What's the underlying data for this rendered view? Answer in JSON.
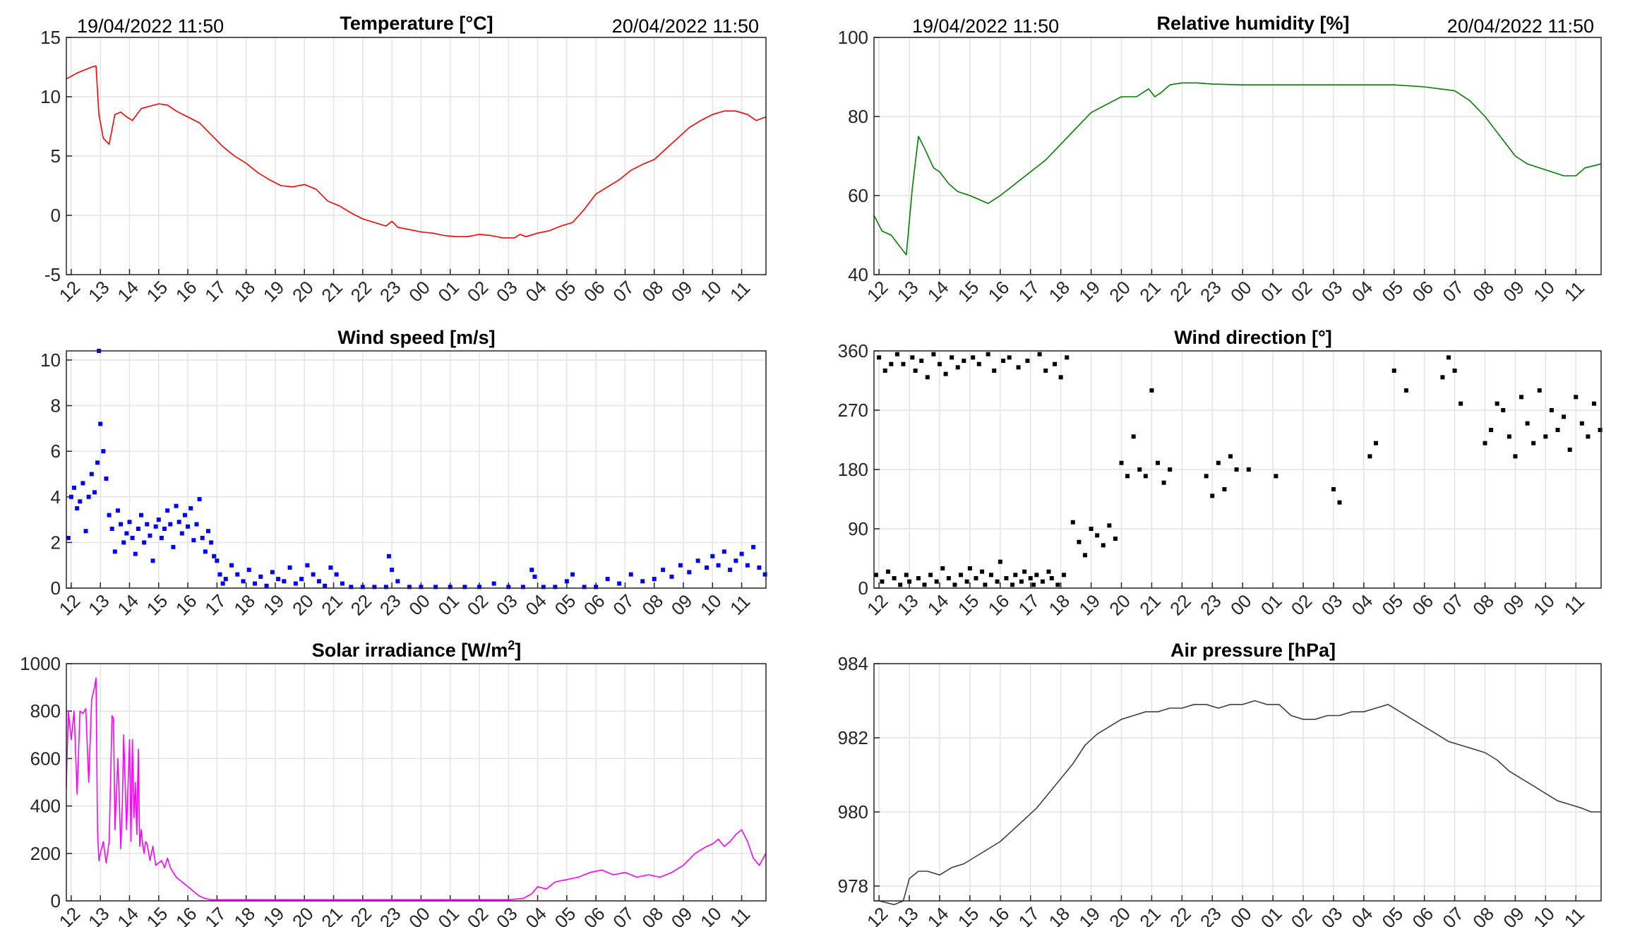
{
  "header": {
    "start_time": "19/04/2022 11:50",
    "end_time": "20/04/2022 11:50"
  },
  "x_ticks": [
    "12",
    "13",
    "14",
    "15",
    "16",
    "17",
    "18",
    "19",
    "20",
    "21",
    "22",
    "23",
    "00",
    "01",
    "02",
    "03",
    "04",
    "05",
    "06",
    "07",
    "08",
    "09",
    "10",
    "11"
  ],
  "chart_data": [
    {
      "id": "temperature",
      "type": "line",
      "title": "Temperature [°C]",
      "color": "#ff0000",
      "ylim": [
        -5,
        15
      ],
      "yticks": [
        -5,
        0,
        5,
        10,
        15
      ],
      "xlim": [
        11.833,
        35.833
      ],
      "grid": true,
      "x": [
        11.83,
        12.2,
        12.4,
        12.7,
        12.85,
        12.95,
        13.1,
        13.3,
        13.5,
        13.7,
        13.9,
        14.1,
        14.4,
        14.7,
        15.0,
        15.3,
        15.6,
        16.0,
        16.4,
        16.8,
        17.2,
        17.6,
        18.0,
        18.4,
        18.8,
        19.2,
        19.6,
        20.0,
        20.4,
        20.8,
        21.2,
        21.6,
        22.0,
        22.4,
        22.8,
        23.0,
        23.2,
        23.6,
        24.0,
        24.4,
        24.8,
        25.2,
        25.6,
        26.0,
        26.4,
        26.8,
        27.2,
        27.4,
        27.6,
        28.0,
        28.4,
        28.8,
        29.2,
        29.6,
        30.0,
        30.4,
        30.8,
        31.2,
        31.6,
        32.0,
        32.4,
        32.8,
        33.2,
        33.6,
        34.0,
        34.4,
        34.8,
        35.2,
        35.5,
        35.83
      ],
      "y": [
        11.5,
        12.0,
        12.2,
        12.5,
        12.6,
        8.5,
        6.5,
        6.0,
        8.5,
        8.7,
        8.3,
        8.0,
        9.0,
        9.2,
        9.4,
        9.3,
        8.8,
        8.3,
        7.8,
        6.8,
        5.8,
        5.0,
        4.4,
        3.6,
        3.0,
        2.5,
        2.4,
        2.6,
        2.2,
        1.2,
        0.8,
        0.2,
        -0.3,
        -0.6,
        -0.9,
        -0.5,
        -1.0,
        -1.2,
        -1.4,
        -1.5,
        -1.7,
        -1.8,
        -1.8,
        -1.6,
        -1.7,
        -1.9,
        -1.9,
        -1.6,
        -1.8,
        -1.5,
        -1.3,
        -0.9,
        -0.6,
        0.5,
        1.8,
        2.4,
        3.0,
        3.8,
        4.3,
        4.7,
        5.6,
        6.5,
        7.4,
        8.0,
        8.5,
        8.8,
        8.8,
        8.5,
        8.0,
        8.3
      ]
    },
    {
      "id": "humidity",
      "type": "line",
      "title": "Relative humidity [%]",
      "color": "#008000",
      "ylim": [
        40,
        100
      ],
      "yticks": [
        40,
        60,
        80,
        100
      ],
      "xlim": [
        11.833,
        35.833
      ],
      "grid": true,
      "x": [
        11.83,
        12.1,
        12.4,
        12.7,
        12.9,
        13.1,
        13.3,
        13.5,
        13.8,
        14.0,
        14.3,
        14.6,
        15.0,
        15.3,
        15.6,
        16.0,
        16.5,
        17.0,
        17.5,
        18.0,
        18.5,
        19.0,
        19.5,
        20.0,
        20.5,
        20.9,
        21.1,
        21.3,
        21.6,
        22.0,
        22.5,
        23.0,
        24.0,
        25.0,
        26.0,
        27.0,
        28.0,
        29.0,
        30.0,
        30.5,
        31.0,
        31.5,
        32.0,
        32.3,
        32.6,
        33.0,
        33.4,
        33.8,
        34.2,
        34.6,
        35.0,
        35.3,
        35.83
      ],
      "y": [
        55,
        51,
        50,
        47,
        45,
        62,
        75,
        72,
        67,
        66,
        63,
        61,
        60,
        59,
        58,
        60,
        63,
        66,
        69,
        73,
        77,
        81,
        83,
        85,
        85,
        87,
        85,
        86,
        88,
        88.5,
        88.5,
        88.2,
        88.0,
        88.0,
        88.0,
        88.0,
        88.0,
        88.0,
        87.5,
        87.0,
        86.5,
        84.0,
        80.0,
        77.0,
        74.0,
        70.0,
        68.0,
        67.0,
        66.0,
        65.0,
        65.0,
        67.0,
        68.0
      ]
    },
    {
      "id": "wind_speed",
      "type": "scatter",
      "title": "Wind speed [m/s]",
      "color": "#0000ff",
      "ylim": [
        0,
        10.4
      ],
      "yticks": [
        0,
        2,
        4,
        6,
        8,
        10
      ],
      "xlim": [
        11.833,
        35.833
      ],
      "grid": true,
      "x": [
        11.9,
        12.0,
        12.1,
        12.2,
        12.3,
        12.4,
        12.5,
        12.6,
        12.7,
        12.8,
        12.9,
        12.95,
        13.0,
        13.1,
        13.2,
        13.3,
        13.4,
        13.5,
        13.6,
        13.7,
        13.8,
        13.9,
        14.0,
        14.1,
        14.2,
        14.3,
        14.4,
        14.5,
        14.6,
        14.7,
        14.8,
        14.9,
        15.0,
        15.1,
        15.2,
        15.3,
        15.4,
        15.5,
        15.6,
        15.7,
        15.8,
        15.9,
        16.0,
        16.1,
        16.2,
        16.3,
        16.4,
        16.5,
        16.6,
        16.7,
        16.8,
        16.9,
        17.0,
        17.1,
        17.2,
        17.3,
        17.5,
        17.7,
        17.9,
        18.1,
        18.3,
        18.5,
        18.7,
        18.9,
        19.1,
        19.3,
        19.5,
        19.7,
        19.9,
        20.1,
        20.3,
        20.5,
        20.7,
        20.9,
        21.1,
        21.3,
        21.6,
        22.0,
        22.4,
        22.8,
        22.9,
        23.0,
        23.2,
        23.6,
        24.0,
        24.5,
        25.0,
        25.5,
        26.0,
        26.5,
        27.0,
        27.5,
        27.8,
        27.9,
        28.2,
        28.6,
        29.0,
        29.2,
        29.6,
        30.0,
        30.4,
        30.8,
        31.2,
        31.6,
        32.0,
        32.3,
        32.6,
        32.9,
        33.2,
        33.5,
        33.8,
        34.0,
        34.2,
        34.4,
        34.6,
        34.8,
        35.0,
        35.2,
        35.4,
        35.6,
        35.8
      ],
      "y": [
        2.2,
        4.0,
        4.4,
        3.5,
        3.8,
        4.6,
        2.5,
        4.0,
        5.0,
        4.2,
        5.5,
        10.4,
        7.2,
        6.0,
        4.8,
        3.2,
        2.6,
        1.6,
        3.4,
        2.8,
        2.0,
        2.4,
        2.9,
        2.2,
        1.5,
        2.6,
        3.2,
        2.0,
        2.8,
        2.3,
        1.2,
        2.7,
        3.0,
        2.2,
        2.6,
        3.4,
        2.8,
        1.8,
        3.6,
        2.9,
        2.4,
        3.2,
        2.7,
        3.5,
        2.1,
        2.8,
        3.9,
        2.2,
        1.6,
        2.5,
        2.0,
        1.4,
        1.2,
        0.6,
        0.2,
        0.4,
        1.0,
        0.6,
        0.3,
        0.8,
        0.2,
        0.5,
        0.1,
        0.7,
        0.4,
        0.3,
        0.9,
        0.2,
        0.4,
        1.0,
        0.6,
        0.3,
        0.1,
        0.9,
        0.6,
        0.2,
        0.05,
        0.05,
        0.05,
        0.05,
        1.4,
        0.8,
        0.3,
        0.05,
        0.05,
        0.05,
        0.05,
        0.05,
        0.05,
        0.2,
        0.05,
        0.05,
        0.8,
        0.5,
        0.05,
        0.05,
        0.3,
        0.6,
        0.05,
        0.05,
        0.4,
        0.2,
        0.6,
        0.3,
        0.4,
        0.8,
        0.5,
        1.0,
        0.7,
        1.2,
        0.9,
        1.4,
        1.0,
        1.6,
        0.8,
        1.2,
        1.5,
        1.0,
        1.8,
        0.9,
        0.6
      ]
    },
    {
      "id": "wind_direction",
      "type": "scatter",
      "title": "Wind direction [°]",
      "color": "#000000",
      "ylim": [
        0,
        360
      ],
      "yticks": [
        0,
        90,
        180,
        270,
        360
      ],
      "xlim": [
        11.833,
        35.833
      ],
      "grid": true,
      "x": [
        11.9,
        12.0,
        12.1,
        12.2,
        12.3,
        12.4,
        12.5,
        12.6,
        12.7,
        12.8,
        12.9,
        13.0,
        13.1,
        13.2,
        13.3,
        13.4,
        13.5,
        13.6,
        13.7,
        13.8,
        13.9,
        14.0,
        14.1,
        14.2,
        14.3,
        14.4,
        14.5,
        14.6,
        14.7,
        14.8,
        14.9,
        15.0,
        15.1,
        15.2,
        15.3,
        15.4,
        15.5,
        15.6,
        15.7,
        15.8,
        15.9,
        16.0,
        16.1,
        16.2,
        16.3,
        16.4,
        16.5,
        16.6,
        16.7,
        16.8,
        16.9,
        17.0,
        17.1,
        17.2,
        17.3,
        17.4,
        17.5,
        17.6,
        17.7,
        17.8,
        17.9,
        18.0,
        18.1,
        18.2,
        18.4,
        18.6,
        18.8,
        19.0,
        19.2,
        19.4,
        19.6,
        19.8,
        20.0,
        20.2,
        20.4,
        20.6,
        20.8,
        21.0,
        21.2,
        21.4,
        21.6,
        22.8,
        23.0,
        23.2,
        23.4,
        23.6,
        23.8,
        24.2,
        25.1,
        27.0,
        27.2,
        28.2,
        28.4,
        29.0,
        29.4,
        30.6,
        30.8,
        31.0,
        31.2,
        32.0,
        32.2,
        32.4,
        32.6,
        32.8,
        33.0,
        33.2,
        33.4,
        33.6,
        33.8,
        34.0,
        34.2,
        34.4,
        34.6,
        34.8,
        35.0,
        35.2,
        35.4,
        35.6,
        35.8
      ],
      "y": [
        20,
        350,
        10,
        330,
        25,
        340,
        15,
        355,
        5,
        340,
        20,
        10,
        350,
        330,
        15,
        345,
        5,
        320,
        20,
        355,
        10,
        340,
        30,
        325,
        15,
        350,
        5,
        335,
        20,
        345,
        10,
        30,
        350,
        15,
        340,
        25,
        5,
        355,
        20,
        330,
        10,
        40,
        345,
        15,
        350,
        5,
        20,
        335,
        10,
        25,
        345,
        15,
        5,
        20,
        355,
        10,
        330,
        25,
        15,
        340,
        5,
        320,
        20,
        350,
        100,
        70,
        50,
        90,
        80,
        65,
        95,
        75,
        190,
        170,
        230,
        180,
        170,
        300,
        190,
        160,
        180,
        170,
        140,
        190,
        150,
        200,
        180,
        180,
        170,
        150,
        130,
        200,
        220,
        330,
        300,
        320,
        350,
        330,
        280,
        220,
        240,
        280,
        270,
        230,
        200,
        290,
        250,
        220,
        300,
        230,
        270,
        240,
        260,
        210,
        290,
        250,
        230,
        280,
        240
      ]
    },
    {
      "id": "solar",
      "type": "line",
      "title": "Solar irradiance [W/m",
      "title_sup": "2",
      "title_end": "]",
      "color": "#ff00ff",
      "ylim": [
        0,
        1000
      ],
      "yticks": [
        0,
        200,
        400,
        600,
        800,
        1000
      ],
      "xlim": [
        11.833,
        35.833
      ],
      "grid": true,
      "x": [
        11.83,
        11.9,
        12.0,
        12.1,
        12.2,
        12.3,
        12.4,
        12.5,
        12.6,
        12.7,
        12.8,
        12.85,
        12.9,
        12.95,
        13.0,
        13.1,
        13.2,
        13.3,
        13.4,
        13.45,
        13.5,
        13.6,
        13.7,
        13.75,
        13.8,
        13.9,
        14.0,
        14.05,
        14.1,
        14.15,
        14.2,
        14.25,
        14.3,
        14.35,
        14.4,
        14.45,
        14.5,
        14.55,
        14.6,
        14.7,
        14.8,
        14.9,
        15.0,
        15.1,
        15.2,
        15.3,
        15.4,
        15.5,
        15.6,
        15.8,
        16.0,
        16.2,
        16.4,
        16.6,
        16.8,
        17.0,
        17.2,
        17.5,
        17.8,
        18.0,
        19.0,
        20.0,
        21.0,
        22.0,
        23.0,
        24.0,
        25.0,
        26.0,
        27.0,
        27.5,
        27.8,
        28.0,
        28.3,
        28.6,
        29.0,
        29.4,
        29.8,
        30.2,
        30.6,
        31.0,
        31.4,
        31.8,
        32.2,
        32.6,
        33.0,
        33.4,
        33.8,
        34.0,
        34.2,
        34.4,
        34.6,
        34.8,
        35.0,
        35.2,
        35.4,
        35.6,
        35.83
      ],
      "y": [
        480,
        800,
        680,
        800,
        450,
        800,
        790,
        810,
        500,
        850,
        900,
        940,
        300,
        170,
        200,
        250,
        160,
        250,
        780,
        770,
        300,
        600,
        220,
        400,
        700,
        300,
        680,
        250,
        680,
        350,
        500,
        280,
        640,
        230,
        300,
        240,
        200,
        250,
        240,
        170,
        230,
        150,
        160,
        170,
        140,
        180,
        140,
        120,
        100,
        80,
        60,
        40,
        20,
        10,
        5,
        5,
        5,
        5,
        5,
        5,
        5,
        5,
        5,
        5,
        5,
        5,
        5,
        5,
        5,
        10,
        30,
        60,
        50,
        80,
        90,
        100,
        120,
        130,
        110,
        120,
        100,
        110,
        100,
        120,
        150,
        200,
        230,
        240,
        260,
        230,
        250,
        280,
        300,
        250,
        180,
        150,
        200
      ]
    },
    {
      "id": "pressure",
      "type": "line",
      "title": "Air pressure [hPa]",
      "color": "#404040",
      "ylim": [
        977.6,
        984
      ],
      "yticks": [
        978,
        980,
        982,
        984
      ],
      "xlim": [
        11.833,
        35.833
      ],
      "grid": true,
      "x": [
        11.83,
        12.0,
        12.5,
        12.8,
        13.0,
        13.3,
        13.6,
        14.0,
        14.4,
        14.8,
        15.2,
        15.6,
        16.0,
        16.4,
        16.8,
        17.2,
        17.6,
        18.0,
        18.4,
        18.8,
        19.2,
        19.6,
        20.0,
        20.4,
        20.8,
        21.2,
        21.6,
        22.0,
        22.4,
        22.8,
        23.2,
        23.6,
        24.0,
        24.4,
        24.8,
        25.2,
        25.6,
        26.0,
        26.4,
        26.8,
        27.2,
        27.6,
        28.0,
        28.4,
        28.8,
        29.2,
        29.6,
        30.0,
        30.4,
        30.8,
        31.2,
        31.6,
        32.0,
        32.4,
        32.8,
        33.2,
        33.6,
        34.0,
        34.4,
        34.8,
        35.2,
        35.5,
        35.83
      ],
      "y": [
        977.6,
        977.6,
        977.5,
        977.6,
        978.2,
        978.4,
        978.4,
        978.3,
        978.5,
        978.6,
        978.8,
        979.0,
        979.2,
        979.5,
        979.8,
        980.1,
        980.5,
        980.9,
        981.3,
        981.8,
        982.1,
        982.3,
        982.5,
        982.6,
        982.7,
        982.7,
        982.8,
        982.8,
        982.9,
        982.9,
        982.8,
        982.9,
        982.9,
        983.0,
        982.9,
        982.9,
        982.6,
        982.5,
        982.5,
        982.6,
        982.6,
        982.7,
        982.7,
        982.8,
        982.9,
        982.7,
        982.5,
        982.3,
        982.1,
        981.9,
        981.8,
        981.7,
        981.6,
        981.4,
        981.1,
        980.9,
        980.7,
        980.5,
        980.3,
        980.2,
        980.1,
        980.0,
        980.0
      ]
    }
  ]
}
